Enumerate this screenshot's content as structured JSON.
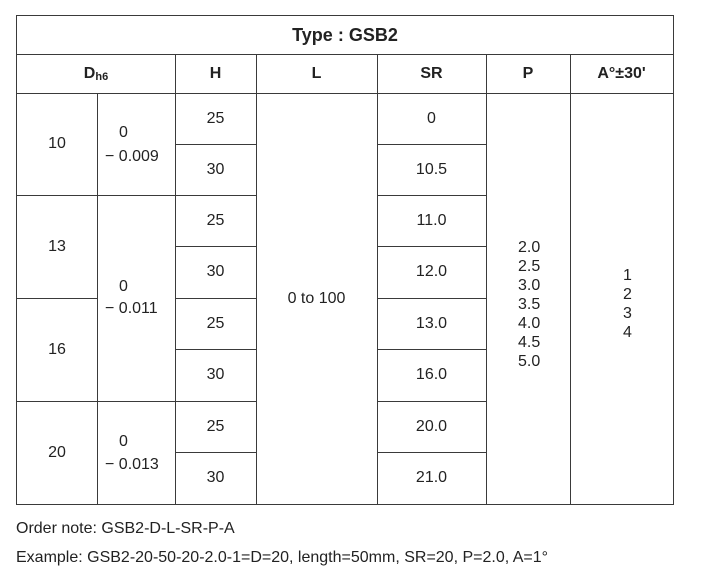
{
  "title": "Type : GSB2",
  "headers": {
    "d_main": "D",
    "d_sub": "h6",
    "h": "H",
    "l": "L",
    "sr": "SR",
    "p": "P",
    "a": "A°±30'"
  },
  "d_groups": [
    {
      "d": "10",
      "tol_upper": "0",
      "tol_lower": "− 0.009"
    },
    {
      "d": "13"
    },
    {
      "d": "16"
    },
    {
      "d": "20",
      "tol_upper": "0",
      "tol_lower": "− 0.013"
    }
  ],
  "tol_middle": {
    "tol_upper": "0",
    "tol_lower": "− 0.011"
  },
  "h_values": [
    "25",
    "30",
    "25",
    "30",
    "25",
    "30",
    "25",
    "30"
  ],
  "l_value": "0 to 100",
  "sr_values": [
    "0",
    "10.5",
    "11.0",
    "12.0",
    "13.0",
    "16.0",
    "20.0",
    "21.0"
  ],
  "p_values": [
    "2.0",
    "2.5",
    "3.0",
    "3.5",
    "4.0",
    "4.5",
    "5.0"
  ],
  "a_values": [
    "1",
    "2",
    "3",
    "4"
  ],
  "order_note": "Order note: GSB2-D-L-SR-P-A",
  "example": "Example: GSB2-20-50-20-2.0-1=D=20, length=50mm, SR=20, P=2.0, A=1°"
}
